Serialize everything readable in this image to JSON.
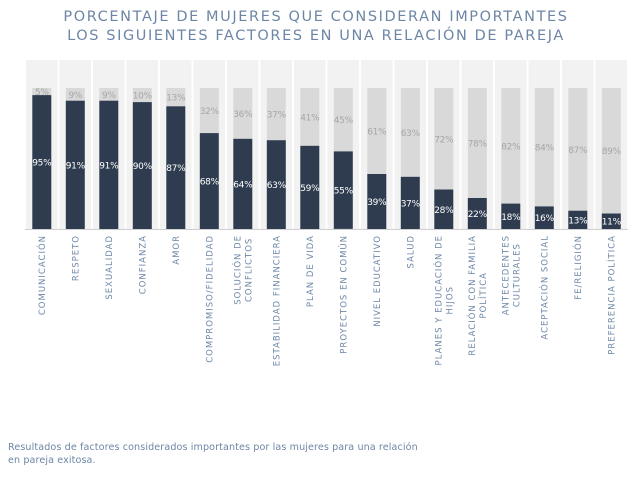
{
  "title": {
    "line1": "PORCENTAJE DE MUJERES QUE CONSIDERAN IMPORTANTES",
    "line2": "LOS SIGUIENTES FACTORES EN UNA RELACIÓN DE PAREJA"
  },
  "caption": {
    "line1": "Resultados de factores considerados importantes por las mujeres para una relación",
    "line2": "en pareja exitosa."
  },
  "colors": {
    "dark_bar": "#2f3c4f",
    "light_bar": "#d9d9d9",
    "panel": "#f2f2f2",
    "title": "#6d86a6",
    "category_label": "#6d86a6",
    "dark_value_label": "#ffffff",
    "light_value_label": "#a6a6a6"
  },
  "chart_data": {
    "type": "bar",
    "stacked": true,
    "ylim": [
      0,
      100
    ],
    "grid": false,
    "categories": [
      [
        "COMUNICACIÓN"
      ],
      [
        "RESPETO"
      ],
      [
        "SEXUALIDAD"
      ],
      [
        "CONFIANZA"
      ],
      [
        "AMOR"
      ],
      [
        "COMPROMISO/FIDELIDAD"
      ],
      [
        "SOLUCIÓN DE",
        "CONFLICTOS"
      ],
      [
        "ESTABILIDAD FINANCIERA"
      ],
      [
        "PLAN DE VIDA"
      ],
      [
        "PROYECTOS EN COMÚN"
      ],
      [
        "NIVEL EDUCATIVO"
      ],
      [
        "SALUD"
      ],
      [
        "PLANES Y EDUCACIÓN DE",
        "HIJOS"
      ],
      [
        "RELACIÓN CON FAMILIA",
        "POLÍTICA"
      ],
      [
        "ANTECEDENTES",
        "CULTURALES"
      ],
      [
        "ACEPTACIÓN SOCIAL"
      ],
      [
        "FE/RELIGIÓN"
      ],
      [
        "PREFERENCIA POLÍTICA"
      ]
    ],
    "series": [
      {
        "values": [
          95,
          91,
          91,
          90,
          87,
          68,
          64,
          63,
          59,
          55,
          39,
          37,
          28,
          22,
          18,
          16,
          13,
          11
        ],
        "labels": [
          "95%",
          "91%",
          "91%",
          "90%",
          "87%",
          "68%",
          "64%",
          "63%",
          "59%",
          "55%",
          "39%",
          "37%",
          "28%",
          "22%",
          "18%",
          "16%",
          "13%",
          "11%"
        ]
      },
      {
        "values": [
          5,
          9,
          9,
          10,
          13,
          32,
          36,
          37,
          41,
          45,
          61,
          63,
          72,
          78,
          82,
          84,
          87,
          89
        ],
        "labels": [
          "5%",
          "9%",
          "9%",
          "10%",
          "13%",
          "32%",
          "36%",
          "37%",
          "41%",
          "45%",
          "61%",
          "63%",
          "72%",
          "78%",
          "82%",
          "84%",
          "87%",
          "89%"
        ]
      }
    ]
  }
}
